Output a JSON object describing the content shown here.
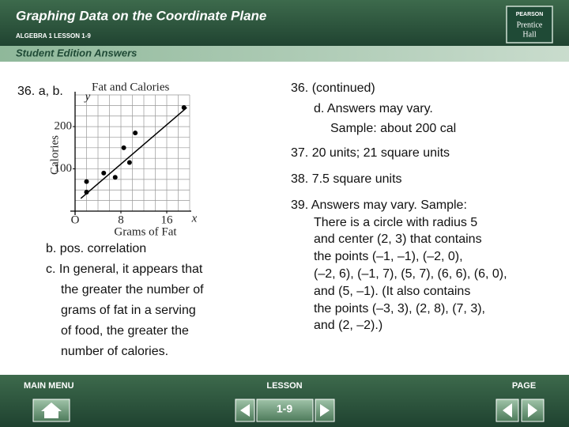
{
  "header": {
    "title": "Graphing Data on the Coordinate Plane",
    "subtitle": "ALGEBRA 1  LESSON 1-9",
    "logo": [
      "PEARSON",
      "Prentice",
      "Hall"
    ],
    "banner": "Student Edition Answers"
  },
  "left": {
    "label": "36. a, b.",
    "lines": [
      "b. pos. correlation",
      "c. In general, it appears that",
      "the greater the number of",
      "grams of fat in a serving",
      "of food, the greater the",
      "number of calories."
    ]
  },
  "chart_data": {
    "type": "scatter",
    "title": "Fat and Calories",
    "x_label": "Grams of Fat",
    "y_label": "Calories",
    "x_axis_name": "x",
    "y_axis_name": "y",
    "x": [
      2,
      2,
      5,
      7,
      8.5,
      9.5,
      10.5,
      19
    ],
    "values": [
      45,
      70,
      90,
      80,
      150,
      115,
      185,
      245
    ],
    "color": "#000000",
    "fit_line": {
      "x": [
        1,
        19.5
      ],
      "values": [
        30,
        245
      ]
    },
    "xlim": [
      0,
      20
    ],
    "ylim": [
      0,
      275
    ],
    "xticks": [
      {
        "value": 0,
        "label": "O"
      },
      8,
      16
    ],
    "yticks": [
      100,
      200
    ],
    "xgrid": [
      0,
      2,
      4,
      6,
      8,
      10,
      12,
      14,
      16,
      18,
      20
    ],
    "ygrid": [
      0,
      25,
      50,
      75,
      100,
      125,
      150,
      175,
      200,
      225,
      250,
      275
    ],
    "grid": true
  },
  "right": {
    "lines": [
      "36. (continued)",
      "d. Answers may vary.",
      "Sample: about 200 cal",
      "37. 20 units; 21 square units",
      "38. 7.5 square units",
      "39. Answers may vary. Sample:",
      "There is a circle with radius 5",
      "and center (2, 3) that contains",
      "the points (–1, –1), (–2, 0),",
      "(–2, 6), (–1, 7), (5, 7), (6, 6), (6, 0),",
      "and (5, –1). (It also contains",
      "the points (–3, 3), (2, 8), (7, 3),",
      "and (2, –2).)"
    ]
  },
  "footer": {
    "main_menu": "MAIN MENU",
    "lesson": "LESSON",
    "page": "PAGE",
    "lesson_number": "1-9"
  }
}
